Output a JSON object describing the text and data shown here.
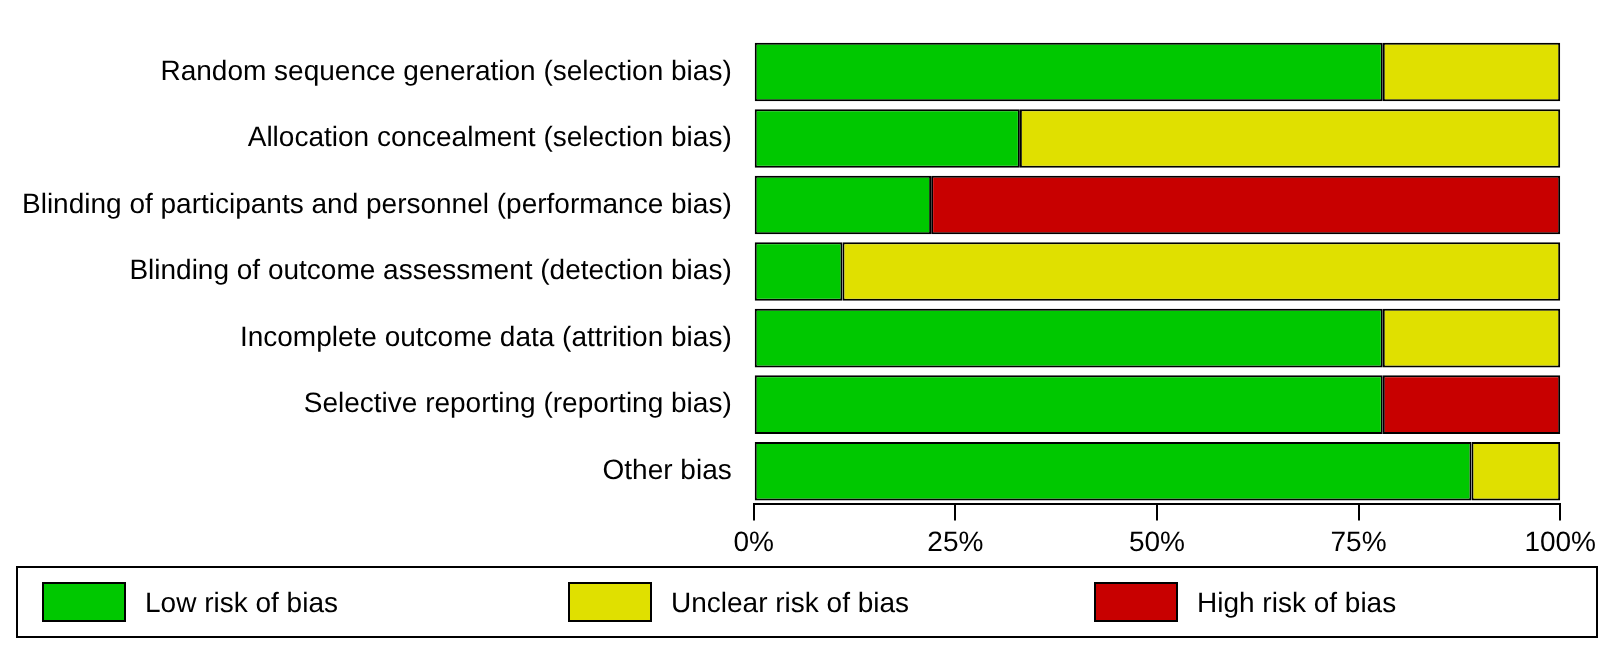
{
  "chart_data": {
    "type": "bar",
    "orientation": "horizontal",
    "stacked": true,
    "categories": [
      "Random sequence generation (selection bias)",
      "Allocation concealment (selection bias)",
      "Blinding of participants and personnel (performance bias)",
      "Blinding of outcome assessment (detection bias)",
      "Incomplete outcome data (attrition bias)",
      "Selective reporting (reporting bias)",
      "Other bias"
    ],
    "series": [
      {
        "name": "Low risk of bias",
        "color": "#00c800",
        "values": [
          78,
          33,
          22,
          11,
          78,
          78,
          89
        ]
      },
      {
        "name": "Unclear risk of bias",
        "color": "#e0e000",
        "values": [
          22,
          67,
          0,
          89,
          22,
          0,
          11
        ]
      },
      {
        "name": "High risk of bias",
        "color": "#c80000",
        "values": [
          0,
          0,
          78,
          0,
          0,
          22,
          0
        ]
      }
    ],
    "xlim": [
      0,
      100
    ],
    "xticks": [
      {
        "value": 0,
        "label": "0%"
      },
      {
        "value": 25,
        "label": "25%"
      },
      {
        "value": 50,
        "label": "50%"
      },
      {
        "value": 75,
        "label": "75%"
      },
      {
        "value": 100,
        "label": "100%"
      }
    ],
    "grid": false,
    "legend": "bottom"
  }
}
